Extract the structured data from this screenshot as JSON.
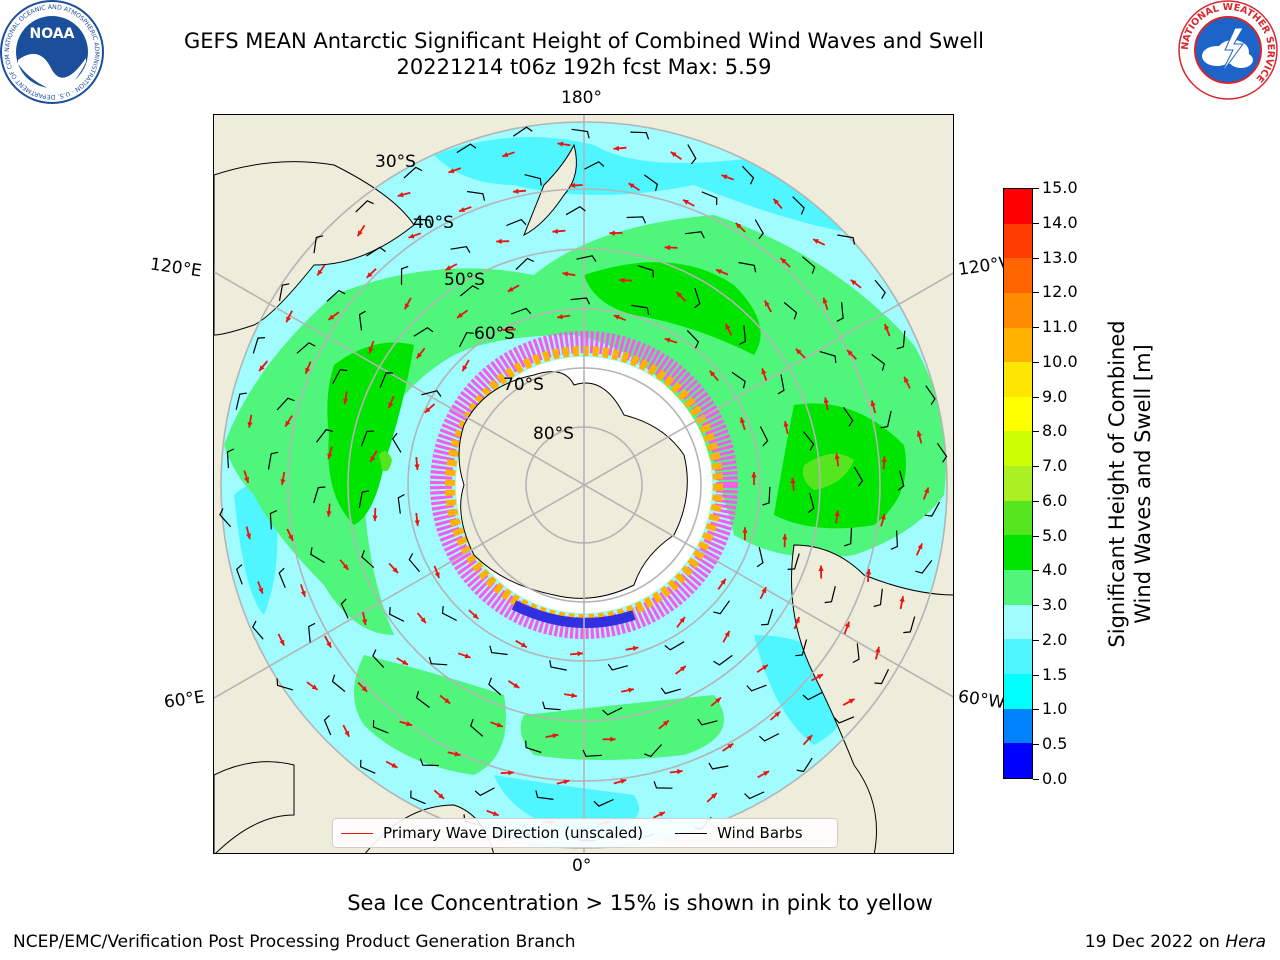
{
  "title": {
    "line1": "GEFS MEAN Antarctic Significant Height of Combined Wind Waves and Swell",
    "line2": "20221214 t06z 192h fcst   Max: 5.59"
  },
  "logos": {
    "noaa": {
      "center_text": "NOAA",
      "ring_text": "NATIONAL OCEANIC AND ATMOSPHERIC ADMINISTRATION · U.S. DEPARTMENT OF COMMERCE",
      "color": "#1b4f9c"
    },
    "nws": {
      "ring_text": "NATIONAL WEATHER SERVICE",
      "ring_color": "#d8262c",
      "center_color": "#1c64c8"
    }
  },
  "map": {
    "longitude_labels": {
      "top": "180°",
      "bottom": "0°",
      "upper_left": "120°E",
      "lower_left": "60°E",
      "upper_right": "120°W",
      "lower_right": "60°W"
    },
    "latitude_labels": [
      "30°S",
      "40°S",
      "50°S",
      "60°S",
      "70°S",
      "80°S"
    ],
    "colors": {
      "land": "#eeecdb",
      "ocean_1_5_2": "#50f6ff",
      "ocean_2_3": "#a0fcff",
      "band_3_4": "#50f57c",
      "band_4_5": "#00e500",
      "band_5_6": "#55e61f",
      "ice_pink": "#f45cf0",
      "ice_orange": "#ffb300",
      "ice_blue": "#3030e0",
      "arrow": "#e8160e",
      "barb": "#000000"
    }
  },
  "legend": {
    "primary_wave_label": "Primary Wave Direction (unscaled)",
    "wind_barbs_label": "Wind Barbs",
    "primary_wave_color": "#e8160e",
    "wind_barbs_color": "#000000"
  },
  "colorbar": {
    "label_line1": "Significant Height of Combined",
    "label_line2": "Wind Waves and Swell [m]",
    "ticks": [
      "0.0",
      "0.5",
      "1.0",
      "1.5",
      "2.0",
      "3.0",
      "4.0",
      "5.0",
      "6.0",
      "7.0",
      "8.0",
      "9.0",
      "10.0",
      "11.0",
      "12.0",
      "13.0",
      "14.0",
      "15.0"
    ],
    "colors": [
      "#0000ff",
      "#0082ff",
      "#00ffff",
      "#50f6ff",
      "#a0fcff",
      "#50f57c",
      "#00e500",
      "#55e61f",
      "#aaf022",
      "#ccff00",
      "#ffff00",
      "#ffe600",
      "#ffb300",
      "#ff8c00",
      "#ff6400",
      "#ff3c00",
      "#ff0000"
    ]
  },
  "caption": "Sea Ice Concentration > 15% is shown in pink to yellow",
  "footer": {
    "left": "NCEP/EMC/Verification Post Processing Product Generation Branch",
    "right_date": "19 Dec 2022 on ",
    "right_host": "Hera"
  }
}
